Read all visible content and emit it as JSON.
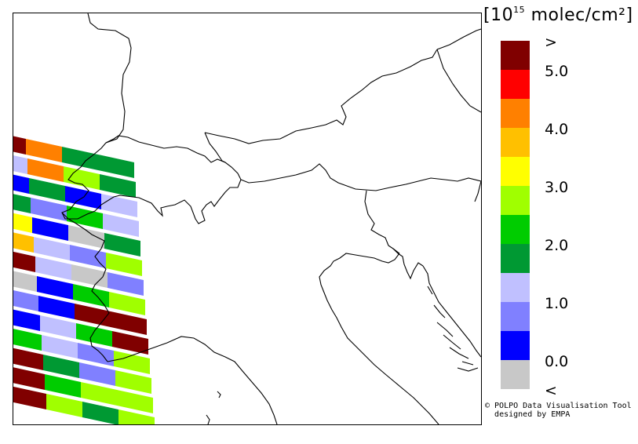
{
  "legend": {
    "title_pre": "[10",
    "title_exp": "15",
    "title_post": " molec/cm²]",
    "scale": [
      {
        "label": ">",
        "color": "#800000"
      },
      {
        "label": "5.0",
        "color": "#ff0000"
      },
      {
        "label": "",
        "color": "#ff8000"
      },
      {
        "label": "4.0",
        "color": "#ffc000"
      },
      {
        "label": "",
        "color": "#ffff00"
      },
      {
        "label": "3.0",
        "color": "#a0ff00"
      },
      {
        "label": "",
        "color": "#00cc00"
      },
      {
        "label": "2.0",
        "color": "#009933"
      },
      {
        "label": "",
        "color": "#c0c0ff"
      },
      {
        "label": "1.0",
        "color": "#8080ff"
      },
      {
        "label": "",
        "color": "#0000ff"
      },
      {
        "label": "0.0",
        "color": "#c8c8c8"
      },
      {
        "label": "<",
        "color": ""
      }
    ]
  },
  "credit": {
    "line1": "© POLPO Data Visualisation Tool",
    "line2": "designed by EMPA"
  }
}
